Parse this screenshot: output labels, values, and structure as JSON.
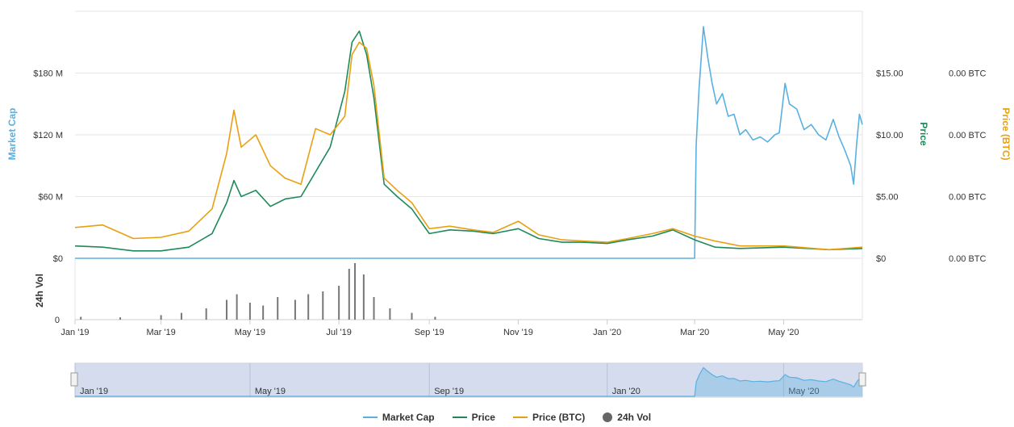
{
  "chart_data": {
    "type": "line",
    "title": "",
    "x_ticks": [
      "Jan '19",
      "Mar '19",
      "May '19",
      "Jul '19",
      "Sep '19",
      "Nov '19",
      "Jan '20",
      "Mar '20",
      "May '20"
    ],
    "navigator_ticks": [
      "Jan '19",
      "May '19",
      "Sep '19",
      "Jan '20",
      "May '20"
    ],
    "x_start": "2019-01-01",
    "x_end": "2020-06-24",
    "axes": {
      "market_cap": {
        "label": "Market Cap",
        "ticks": [
          "$0",
          "$60 M",
          "$120 M",
          "$180 M"
        ],
        "range": [
          0,
          240
        ],
        "color": "#5ab0e0"
      },
      "price": {
        "label": "Price",
        "ticks": [
          "$0",
          "$5.00",
          "$10.00",
          "$15.00"
        ],
        "range": [
          0,
          20
        ],
        "color": "#1e8a5a"
      },
      "price_btc": {
        "label": "Price (BTC)",
        "ticks": [
          "0.00 BTC",
          "0.00 BTC",
          "0.00 BTC",
          "0.00 BTC"
        ],
        "range": [
          0,
          20
        ],
        "color": "#e8a010"
      },
      "volume": {
        "label": "24h Vol",
        "ticks": [
          "0"
        ],
        "color": "#777777"
      }
    },
    "series": [
      {
        "name": "Market Cap",
        "color": "#5ab0e0",
        "points": [
          [
            "2019-01-01",
            0
          ],
          [
            "2020-03-01",
            0
          ],
          [
            "2020-03-02",
            110
          ],
          [
            "2020-03-04",
            165
          ],
          [
            "2020-03-07",
            225
          ],
          [
            "2020-03-10",
            195
          ],
          [
            "2020-03-13",
            170
          ],
          [
            "2020-03-16",
            150
          ],
          [
            "2020-03-20",
            160
          ],
          [
            "2020-03-24",
            138
          ],
          [
            "2020-03-28",
            140
          ],
          [
            "2020-04-01",
            120
          ],
          [
            "2020-04-05",
            125
          ],
          [
            "2020-04-10",
            115
          ],
          [
            "2020-04-15",
            118
          ],
          [
            "2020-04-20",
            113
          ],
          [
            "2020-04-25",
            120
          ],
          [
            "2020-04-28",
            122
          ],
          [
            "2020-05-02",
            170
          ],
          [
            "2020-05-05",
            150
          ],
          [
            "2020-05-10",
            145
          ],
          [
            "2020-05-15",
            125
          ],
          [
            "2020-05-20",
            130
          ],
          [
            "2020-05-25",
            120
          ],
          [
            "2020-05-30",
            115
          ],
          [
            "2020-06-04",
            135
          ],
          [
            "2020-06-08",
            118
          ],
          [
            "2020-06-12",
            105
          ],
          [
            "2020-06-16",
            90
          ],
          [
            "2020-06-18",
            72
          ],
          [
            "2020-06-20",
            110
          ],
          [
            "2020-06-22",
            140
          ],
          [
            "2020-06-24",
            130
          ]
        ]
      },
      {
        "name": "Price",
        "color": "#1e8a5a",
        "points": [
          [
            "2019-01-01",
            1.0
          ],
          [
            "2019-01-20",
            0.9
          ],
          [
            "2019-02-10",
            0.6
          ],
          [
            "2019-03-01",
            0.6
          ],
          [
            "2019-03-20",
            0.9
          ],
          [
            "2019-04-05",
            2.0
          ],
          [
            "2019-04-15",
            4.5
          ],
          [
            "2019-04-20",
            6.3
          ],
          [
            "2019-04-25",
            5.0
          ],
          [
            "2019-05-05",
            5.5
          ],
          [
            "2019-05-15",
            4.2
          ],
          [
            "2019-05-25",
            4.8
          ],
          [
            "2019-06-05",
            5.0
          ],
          [
            "2019-06-15",
            7.0
          ],
          [
            "2019-06-25",
            9.0
          ],
          [
            "2019-07-05",
            13.5
          ],
          [
            "2019-07-10",
            17.5
          ],
          [
            "2019-07-15",
            18.4
          ],
          [
            "2019-07-20",
            16.5
          ],
          [
            "2019-07-25",
            13.0
          ],
          [
            "2019-08-01",
            6.0
          ],
          [
            "2019-08-10",
            5.0
          ],
          [
            "2019-08-20",
            4.0
          ],
          [
            "2019-09-01",
            2.0
          ],
          [
            "2019-09-15",
            2.3
          ],
          [
            "2019-10-01",
            2.2
          ],
          [
            "2019-10-15",
            2.0
          ],
          [
            "2019-11-01",
            2.4
          ],
          [
            "2019-11-15",
            1.6
          ],
          [
            "2019-12-01",
            1.3
          ],
          [
            "2019-12-15",
            1.3
          ],
          [
            "2020-01-01",
            1.2
          ],
          [
            "2020-01-15",
            1.5
          ],
          [
            "2020-02-01",
            1.8
          ],
          [
            "2020-02-15",
            2.3
          ],
          [
            "2020-03-01",
            1.5
          ],
          [
            "2020-03-15",
            0.9
          ],
          [
            "2020-04-01",
            0.8
          ],
          [
            "2020-05-01",
            0.9
          ],
          [
            "2020-06-01",
            0.7
          ],
          [
            "2020-06-24",
            0.8
          ]
        ]
      },
      {
        "name": "Price (BTC)",
        "color": "#e8a010",
        "points": [
          [
            "2019-01-01",
            2.5
          ],
          [
            "2019-01-20",
            2.7
          ],
          [
            "2019-02-10",
            1.6
          ],
          [
            "2019-03-01",
            1.7
          ],
          [
            "2019-03-20",
            2.2
          ],
          [
            "2019-04-05",
            4.0
          ],
          [
            "2019-04-15",
            8.5
          ],
          [
            "2019-04-20",
            12.0
          ],
          [
            "2019-04-25",
            9.0
          ],
          [
            "2019-05-05",
            10.0
          ],
          [
            "2019-05-15",
            7.5
          ],
          [
            "2019-05-25",
            6.5
          ],
          [
            "2019-06-05",
            6.0
          ],
          [
            "2019-06-15",
            10.5
          ],
          [
            "2019-06-25",
            10.0
          ],
          [
            "2019-07-05",
            11.5
          ],
          [
            "2019-07-10",
            16.5
          ],
          [
            "2019-07-15",
            17.5
          ],
          [
            "2019-07-20",
            17.0
          ],
          [
            "2019-07-25",
            14.0
          ],
          [
            "2019-08-01",
            6.5
          ],
          [
            "2019-08-10",
            5.5
          ],
          [
            "2019-08-20",
            4.5
          ],
          [
            "2019-09-01",
            2.4
          ],
          [
            "2019-09-15",
            2.6
          ],
          [
            "2019-10-01",
            2.3
          ],
          [
            "2019-10-15",
            2.1
          ],
          [
            "2019-11-01",
            3.0
          ],
          [
            "2019-11-15",
            1.9
          ],
          [
            "2019-12-01",
            1.5
          ],
          [
            "2019-12-15",
            1.4
          ],
          [
            "2020-01-01",
            1.3
          ],
          [
            "2020-01-15",
            1.6
          ],
          [
            "2020-02-01",
            2.0
          ],
          [
            "2020-02-15",
            2.4
          ],
          [
            "2020-03-01",
            1.8
          ],
          [
            "2020-03-15",
            1.4
          ],
          [
            "2020-04-01",
            1.0
          ],
          [
            "2020-05-01",
            1.0
          ],
          [
            "2020-06-01",
            0.7
          ],
          [
            "2020-06-24",
            0.9
          ]
        ]
      },
      {
        "name": "24h Vol",
        "color": "#777777",
        "points": [
          [
            "2019-01-05",
            0.05
          ],
          [
            "2019-02-01",
            0.04
          ],
          [
            "2019-03-01",
            0.08
          ],
          [
            "2019-03-15",
            0.12
          ],
          [
            "2019-04-01",
            0.2
          ],
          [
            "2019-04-15",
            0.35
          ],
          [
            "2019-04-22",
            0.45
          ],
          [
            "2019-05-01",
            0.3
          ],
          [
            "2019-05-10",
            0.25
          ],
          [
            "2019-05-20",
            0.4
          ],
          [
            "2019-06-01",
            0.35
          ],
          [
            "2019-06-10",
            0.45
          ],
          [
            "2019-06-20",
            0.5
          ],
          [
            "2019-07-01",
            0.6
          ],
          [
            "2019-07-08",
            0.9
          ],
          [
            "2019-07-12",
            1.0
          ],
          [
            "2019-07-18",
            0.8
          ],
          [
            "2019-07-25",
            0.4
          ],
          [
            "2019-08-05",
            0.2
          ],
          [
            "2019-08-20",
            0.12
          ],
          [
            "2019-09-05",
            0.05
          ]
        ]
      }
    ],
    "legend": [
      "Market Cap",
      "Price",
      "Price (BTC)",
      "24h Vol"
    ],
    "legend_position": "bottom"
  }
}
